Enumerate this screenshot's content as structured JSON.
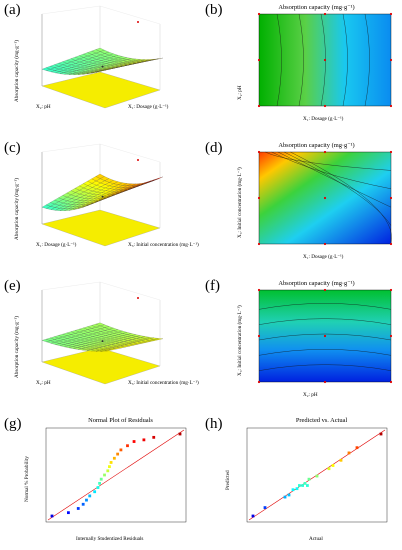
{
  "panels": [
    {
      "id": "a",
      "label": "(a)",
      "type": "surface3d",
      "zlabel": "Absorption capacity (mg·g⁻¹)",
      "xlabel": "X₂: pH",
      "ylabel": "X₁: Dosage (g·L⁻¹)"
    },
    {
      "id": "b",
      "label": "(b)",
      "type": "contour",
      "title": "Absorption capacity (mg·g⁻¹)",
      "xlabel": "X₁: Dosage (g·L⁻¹)",
      "ylabel": "X₂: pH"
    },
    {
      "id": "c",
      "label": "(c)",
      "type": "surface3d",
      "zlabel": "Absorption capacity (mg·g⁻¹)",
      "xlabel": "X₁: Dosage (g·L⁻¹)",
      "ylabel": "X₃: Initial concentration (mg·L⁻¹)"
    },
    {
      "id": "d",
      "label": "(d)",
      "type": "contour",
      "title": "Absorption capacity (mg·g⁻¹)",
      "xlabel": "X₁: Dosage (g·L⁻¹)",
      "ylabel": "X₃: Initial concentration (mg·L⁻¹)"
    },
    {
      "id": "e",
      "label": "(e)",
      "type": "surface3d",
      "zlabel": "Absorption capacity (mg·g⁻¹)",
      "xlabel": "X₂: pH",
      "ylabel": "X₃: Initial concentration (mg·L⁻¹)"
    },
    {
      "id": "f",
      "label": "(f)",
      "type": "contour",
      "title": "Absorption capacity (mg·g⁻¹)",
      "xlabel": "X₂: pH",
      "ylabel": "X₃: Initial concentration (mg·L⁻¹)"
    },
    {
      "id": "g",
      "label": "(g)",
      "type": "scatter",
      "title": "Normal Plot of Residuals",
      "xlabel": "Internally Studentized Residuals",
      "ylabel": "Normal % Probability"
    },
    {
      "id": "h",
      "label": "(h)",
      "type": "scatter",
      "title": "Predicted vs. Actual",
      "xlabel": "Actual",
      "ylabel": "Predicted"
    }
  ],
  "chart_data": [
    {
      "type": "scatter",
      "title": "Normal Plot of Residuals",
      "xlabel": "Internally Studentized Residuals",
      "ylabel": "Normal % Probability",
      "x": [
        -2.0,
        -1.5,
        -1.2,
        -1.05,
        -0.95,
        -0.85,
        -0.7,
        -0.6,
        -0.55,
        -0.5,
        -0.4,
        -0.3,
        -0.25,
        -0.2,
        -0.1,
        0.0,
        0.1,
        0.3,
        0.5,
        0.8,
        1.1,
        1.9
      ],
      "y": [
        1,
        5,
        10,
        15,
        20,
        25,
        30,
        35,
        40,
        45,
        50,
        55,
        60,
        65,
        70,
        75,
        80,
        85,
        90,
        92,
        95,
        99
      ]
    },
    {
      "type": "scatter",
      "title": "Predicted vs. Actual",
      "xlabel": "Actual",
      "ylabel": "Predicted",
      "x": [
        20,
        35,
        60,
        65,
        70,
        75,
        78,
        82,
        85,
        88,
        90,
        100,
        115,
        120,
        130,
        140,
        150,
        180
      ],
      "y": [
        22,
        38,
        58,
        62,
        72,
        74,
        80,
        80,
        84,
        80,
        92,
        98,
        112,
        118,
        128,
        142,
        152,
        178
      ]
    }
  ]
}
